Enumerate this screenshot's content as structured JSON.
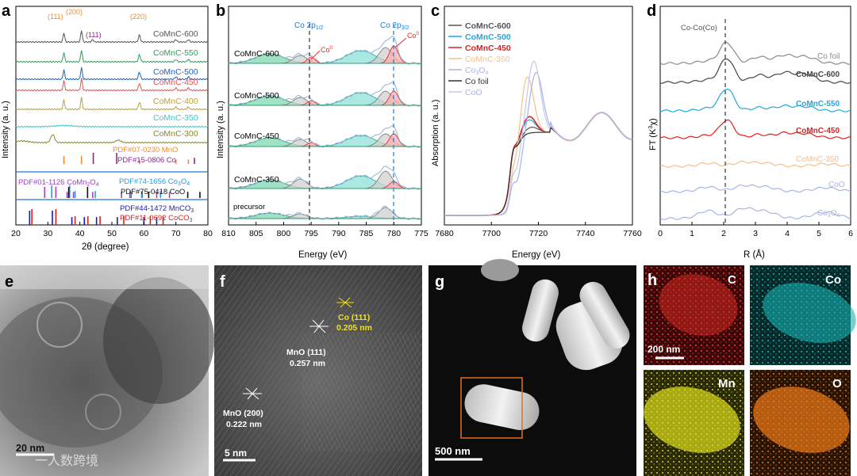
{
  "panel_letters": [
    "a",
    "b",
    "c",
    "d",
    "e",
    "f",
    "g",
    "h"
  ],
  "colors": {
    "c600": "#555555",
    "c550": "#2e9e5e",
    "c500": "#1565c0",
    "c450": "#e05555",
    "c400": "#b8a040",
    "c350": "#3ec8c8",
    "c300": "#8a8a2a",
    "mno": "#f08c2c",
    "co": "#8a2a8a",
    "comn2o4": "#a040c0",
    "co3o4": "#1fa0e8",
    "coo": "#111111",
    "mnco3": "#1a1ab0",
    "coco3": "#e02020",
    "blueline": "#1f78d8",
    "redpeak": "#e03030",
    "tealpeak": "#20b0a0",
    "grey_peak": "#9a9a9a"
  },
  "chart_data": [
    {
      "panel": "a",
      "type": "line",
      "xlabel": "2θ (degree)",
      "ylabel": "Intensity (a. u.)",
      "xlim": [
        20,
        80
      ],
      "xticks": [
        "20",
        "30",
        "40",
        "50",
        "60",
        "70",
        "80"
      ],
      "peak_labels": [
        "(111)",
        "(200)",
        "(111)",
        "(220)"
      ],
      "series": [
        {
          "name": "CoMnC-600",
          "peaks": [
            35,
            40.5,
            44,
            58.6
          ]
        },
        {
          "name": "CoMnC-550",
          "peaks": [
            35,
            40.5,
            58.6
          ]
        },
        {
          "name": "CoMnC-500",
          "peaks": [
            35,
            40.5,
            58.6
          ]
        },
        {
          "name": "CoMnC-450",
          "peaks": [
            35,
            40.5,
            58.6
          ]
        },
        {
          "name": "CoMnC-400",
          "peaks": [
            35,
            40.5,
            58.6
          ]
        },
        {
          "name": "CoMnC-350",
          "peaks": []
        },
        {
          "name": "CoMnC-300",
          "peaks": [
            31.5,
            52
          ]
        }
      ],
      "references": [
        {
          "name": "PDF#07-0230 MnO",
          "lines": [
            35,
            40.5,
            58.6,
            70,
            73.9
          ]
        },
        {
          "name": "PDF#15-0806 Co",
          "lines": [
            44.2,
            51.5,
            75.8
          ]
        },
        {
          "name": "PDF#01-1126 CoMn2O4",
          "lines": [
            29,
            32.5,
            36,
            38,
            44,
            53,
            56,
            59.5,
            64,
            68
          ]
        },
        {
          "name": "PDF#74-1656 Co3O4",
          "lines": [
            31.2,
            36.8,
            38.5,
            44.8,
            55.6,
            59.3,
            65.2
          ]
        },
        {
          "name": "PDF#75-0418 CoO",
          "lines": [
            36.5,
            42.4,
            61.5,
            73.7,
            77.5
          ]
        },
        {
          "name": "PDF#44-1472 MnCO3",
          "lines": [
            24.3,
            31.4,
            37.5,
            41.4,
            45.2,
            51.7,
            60,
            64
          ]
        },
        {
          "name": "PDF#11-0692 CoCO3",
          "lines": [
            25,
            32.5,
            38.5,
            42.5,
            46.3,
            53.7,
            62,
            66
          ]
        }
      ]
    },
    {
      "panel": "b",
      "type": "line",
      "xlabel": "Energy (eV)",
      "ylabel": "Intensity (a. u.)",
      "xlim": [
        810,
        775
      ],
      "xticks": [
        "810",
        "805",
        "800",
        "795",
        "790",
        "785",
        "780",
        "775"
      ],
      "annotations": [
        "Co 2p1/2",
        "Co 2p3/2",
        "Co0",
        "Co0"
      ],
      "series": [
        {
          "name": "CoMnC-600"
        },
        {
          "name": "CoMnC-500"
        },
        {
          "name": "CoMnC-450"
        },
        {
          "name": "CoMnC-350"
        },
        {
          "name": "precursor"
        }
      ],
      "components": [
        {
          "name": "satellite 2p1/2",
          "center": 802.5
        },
        {
          "name": "Co 2p1/2 Co2+",
          "center": 797
        },
        {
          "name": "Co0 2p1/2",
          "center": 795
        },
        {
          "name": "satellite 2p3/2",
          "center": 786
        },
        {
          "name": "Co 2p3/2 Co2+",
          "center": 781.5
        },
        {
          "name": "Co0 2p3/2",
          "center": 780
        }
      ],
      "dashed_lines": [
        795,
        780
      ]
    },
    {
      "panel": "c",
      "type": "line",
      "xlabel": "Energy (eV)",
      "ylabel": "Absorption (a. u.)",
      "xlim": [
        7680,
        7760
      ],
      "xticks": [
        "7680",
        "7700",
        "7720",
        "7740",
        "7760"
      ],
      "series": [
        {
          "name": "CoMnC-600",
          "edge": 7709,
          "peak": 7717,
          "height": 0.75
        },
        {
          "name": "CoMnC-500",
          "edge": 7709,
          "peak": 7716,
          "height": 0.82
        },
        {
          "name": "CoMnC-450",
          "edge": 7709,
          "peak": 7716,
          "height": 0.85
        },
        {
          "name": "CoMnC-350",
          "edge": 7711,
          "peak": 7715,
          "height": 1.25
        },
        {
          "name": "Co3O4",
          "edge": 7712,
          "peak": 7719,
          "height": 1.25
        },
        {
          "name": "Co foil",
          "edge": 7709,
          "peak": 7716,
          "height": 0.7
        },
        {
          "name": "CoO",
          "edge": 7711,
          "peak": 7718,
          "height": 1.35
        }
      ]
    },
    {
      "panel": "d",
      "type": "line",
      "xlabel": "R (Å)",
      "ylabel": "FT (K3χ)",
      "xlim": [
        0,
        6
      ],
      "xticks": [
        "0",
        "1",
        "2",
        "3",
        "4",
        "5",
        "6"
      ],
      "annotation": "Co-Co(Co)",
      "dashed_line": 2.1,
      "series": [
        {
          "name": "Co foil"
        },
        {
          "name": "CoMnC-600"
        },
        {
          "name": "CoMnC-550"
        },
        {
          "name": "CoMnC-450"
        },
        {
          "name": "CoMnC-350"
        },
        {
          "name": "CoO"
        },
        {
          "name": "Co3O4"
        }
      ]
    }
  ],
  "panel_a": {
    "peak_labels": [
      "(111)",
      "(200)",
      "(111)",
      "(220)"
    ],
    "series_labels": [
      "CoMnC-600",
      "CoMnC-550",
      "CoMnC-500",
      "CoMnC-450",
      "CoMnC-400",
      "CoMnC-350",
      "CoMnC-300"
    ],
    "ref1": "PDF#07-0230 MnO",
    "ref2": "PDF#15-0806 Co",
    "ref3": "PDF#01-1126 CoMn",
    "ref3b": "2",
    "ref3c": "O",
    "ref3d": "4",
    "ref4": "PDF#74-1656 Co",
    "ref4b": "3",
    "ref4c": "O",
    "ref4d": "4",
    "ref5": "PDF#75-0418 CoO",
    "ref6": "PDF#44-1472 MnCO",
    "ref6b": "3",
    "ref7": "PDF#11-0692 CoCO",
    "ref7b": "3",
    "ylabel": "Intensity (a. u.)",
    "xlabel_pre": "2",
    "xlabel_theta": "θ",
    "xlabel_post": " (degree)",
    "xticks": [
      "20",
      "30",
      "40",
      "50",
      "60",
      "70",
      "80"
    ]
  },
  "panel_b": {
    "top_left": "Co 2p",
    "top_left_sub": "1/2",
    "top_right": "Co 2p",
    "top_right_sub": "3/2",
    "co0": "Co",
    "co0_sup": "0",
    "labels": [
      "CoMnC-600",
      "CoMnC-500",
      "CoMnC-450",
      "CoMnC-350",
      "precursor"
    ],
    "ylabel": "Intensity (a. u.)",
    "xlabel": "Energy (eV)",
    "xticks": [
      "810",
      "805",
      "800",
      "795",
      "790",
      "785",
      "780",
      "775"
    ]
  },
  "panel_c": {
    "legend": [
      "CoMnC-600",
      "CoMnC-500",
      "CoMnC-450",
      "CoMnC-350",
      "Co",
      "Co foil",
      "CoO"
    ],
    "co3o4_sub1": "3",
    "co3o4_o": "O",
    "co3o4_sub2": "4",
    "ylabel": "Absorption (a. u.)",
    "xlabel": "Energy (eV)",
    "xticks": [
      "7680",
      "7700",
      "7720",
      "7740",
      "7760"
    ]
  },
  "panel_d": {
    "annotation": "Co-Co(Co)",
    "labels": [
      "Co foil",
      "CoMnC-600",
      "CoMnC-550",
      "CoMnC-450",
      "CoMnC-350",
      "CoO",
      "Co"
    ],
    "co3o4_sub1": "3",
    "co3o4_o": "O",
    "co3o4_sub2": "4",
    "ylabel_pre": "FT (K",
    "ylabel_sup": "3",
    "ylabel_post": "χ)",
    "xlabel": "R (Å)",
    "xticks": [
      "0",
      "1",
      "2",
      "3",
      "4",
      "5",
      "6"
    ]
  },
  "panel_e": {
    "scale": "20 nm"
  },
  "panel_f": {
    "co_label": "Co (111)",
    "co_d": "0.205 nm",
    "mno111_label": "MnO (111)",
    "mno111_d": "0.257 nm",
    "mno200_label": "MnO (200)",
    "mno200_d": "0.222 nm",
    "scale": "5 nm"
  },
  "panel_g": {
    "scale": "500 nm"
  },
  "panel_h": {
    "maps": [
      "C",
      "Co",
      "Mn",
      "O"
    ],
    "scale": "200 nm"
  },
  "watermark": "一人数跨境"
}
